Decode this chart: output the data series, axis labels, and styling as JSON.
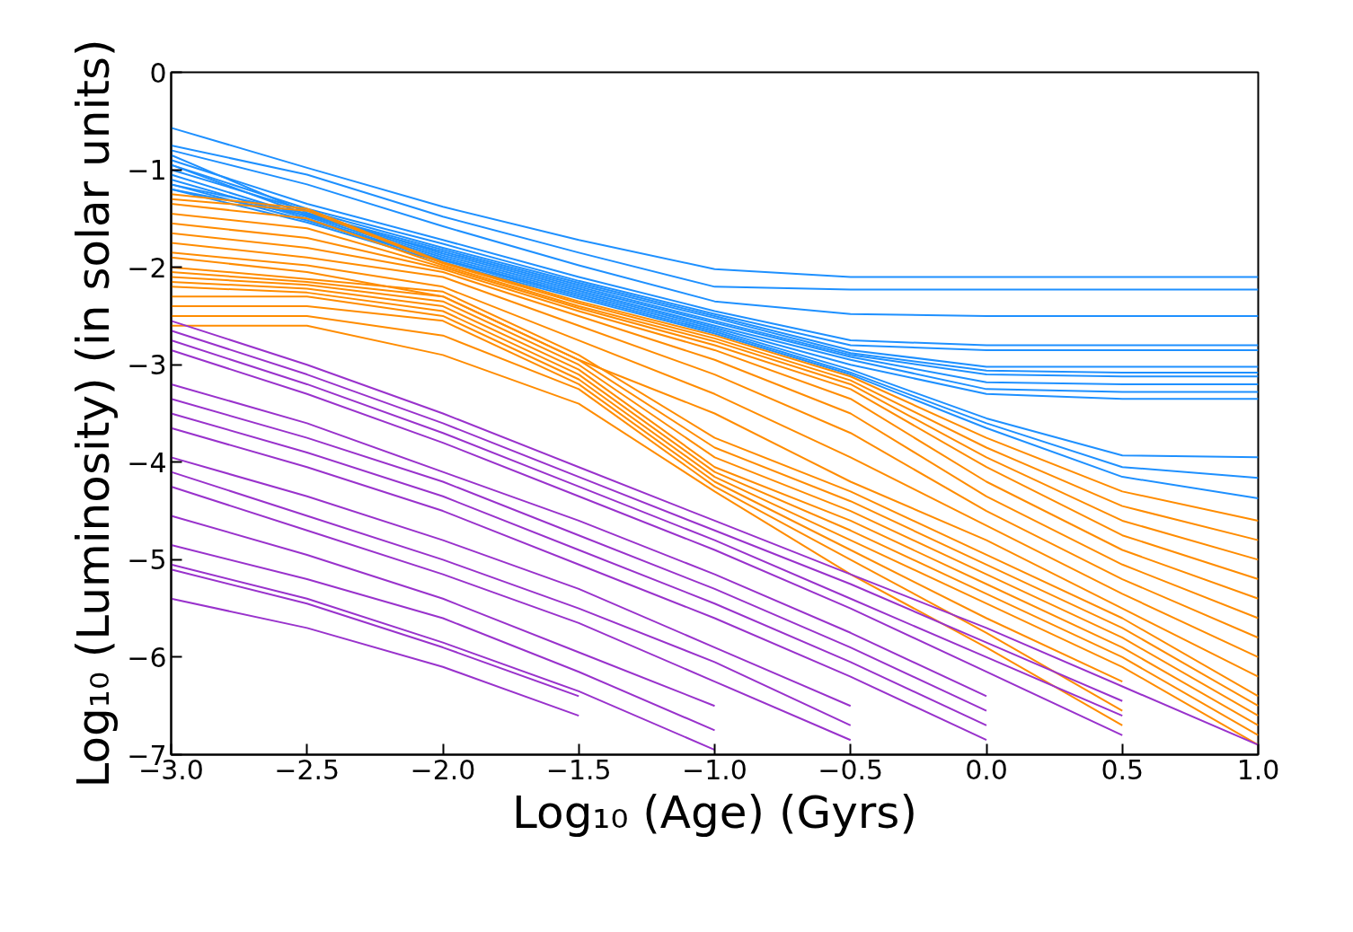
{
  "chart_data": {
    "type": "line",
    "xlabel": "Log₁₀ (Age) (Gyrs)",
    "ylabel": "Log₁₀ (Luminosity) (in solar units)",
    "x": [
      -3,
      -2.5,
      -2,
      -1.5,
      -1,
      -0.5,
      0,
      0.5,
      1
    ],
    "xlim": [
      -3,
      1
    ],
    "ylim": [
      -7,
      0
    ],
    "xticks": [
      {
        "value": -3,
        "label": "−3.0"
      },
      {
        "value": -2.5,
        "label": "−2.5"
      },
      {
        "value": -2,
        "label": "−2.0"
      },
      {
        "value": -1.5,
        "label": "−1.5"
      },
      {
        "value": -1,
        "label": "−1.0"
      },
      {
        "value": -0.5,
        "label": "−0.5"
      },
      {
        "value": 0,
        "label": "0.0"
      },
      {
        "value": 0.5,
        "label": "0.5"
      },
      {
        "value": 1,
        "label": "1.0"
      }
    ],
    "yticks": [
      {
        "value": -7,
        "label": "−7"
      },
      {
        "value": -6,
        "label": "−6"
      },
      {
        "value": -5,
        "label": "−5"
      },
      {
        "value": -4,
        "label": "−4"
      },
      {
        "value": -3,
        "label": "−3"
      },
      {
        "value": -2,
        "label": "−2"
      },
      {
        "value": -1,
        "label": "−1"
      },
      0
    ],
    "grid": false,
    "line_style": "solid",
    "marker": "none",
    "series": [
      {
        "color": "#1e90ff",
        "values": [
          -0.57,
          -0.98,
          -1.38,
          -1.72,
          -2.02,
          -2.1,
          -2.1,
          -2.1,
          -2.1
        ]
      },
      {
        "color": "#1e90ff",
        "values": [
          -0.75,
          -1.05,
          -1.48,
          -1.85,
          -2.2,
          -2.23,
          -2.23,
          -2.23,
          -2.23
        ]
      },
      {
        "color": "#1e90ff",
        "values": [
          -0.8,
          -1.15,
          -1.58,
          -1.98,
          -2.35,
          -2.48,
          -2.5,
          -2.5,
          -2.5
        ]
      },
      {
        "color": "#1e90ff",
        "values": [
          -0.9,
          -1.35,
          -1.72,
          -2.1,
          -2.45,
          -2.75,
          -2.8,
          -2.8,
          -2.8
        ]
      },
      {
        "color": "#1e90ff",
        "values": [
          -0.95,
          -1.4,
          -1.76,
          -2.14,
          -2.48,
          -2.8,
          -2.85,
          -2.85,
          -2.85
        ]
      },
      {
        "color": "#1e90ff",
        "values": [
          -1.0,
          -1.42,
          -1.8,
          -2.16,
          -2.5,
          -2.85,
          -3.02,
          -3.02,
          -3.02
        ]
      },
      {
        "color": "#1e90ff",
        "values": [
          -1.15,
          -1.45,
          -1.82,
          -2.18,
          -2.52,
          -2.88,
          -3.06,
          -3.08,
          -3.08
        ]
      },
      {
        "color": "#1e90ff",
        "values": [
          -1.2,
          -1.47,
          -1.84,
          -2.2,
          -2.55,
          -2.9,
          -3.1,
          -3.12,
          -3.12
        ]
      },
      {
        "color": "#1e90ff",
        "values": [
          -0.85,
          -1.44,
          -1.86,
          -2.22,
          -2.57,
          -2.92,
          -3.18,
          -3.2,
          -3.2
        ]
      },
      {
        "color": "#1e90ff",
        "values": [
          -0.95,
          -1.46,
          -1.88,
          -2.24,
          -2.6,
          -2.95,
          -3.25,
          -3.28,
          -3.28
        ]
      },
      {
        "color": "#1e90ff",
        "values": [
          -1.05,
          -1.48,
          -1.9,
          -2.26,
          -2.62,
          -3.0,
          -3.3,
          -3.35,
          -3.35
        ]
      },
      {
        "color": "#1e90ff",
        "values": [
          -1.1,
          -1.5,
          -1.92,
          -2.28,
          -2.64,
          -3.05,
          -3.55,
          -3.93,
          -3.95
        ]
      },
      {
        "color": "#1e90ff",
        "values": [
          -1.15,
          -1.52,
          -1.93,
          -2.3,
          -2.66,
          -3.08,
          -3.6,
          -4.05,
          -4.16
        ]
      },
      {
        "color": "#1e90ff",
        "values": [
          -1.2,
          -1.54,
          -1.95,
          -2.32,
          -2.68,
          -3.1,
          -3.65,
          -4.15,
          -4.37
        ]
      },
      {
        "color": "#ff8c00",
        "values": [
          -1.25,
          -1.4,
          -1.95,
          -2.35,
          -2.7,
          -3.12,
          -3.75,
          -4.3,
          -4.6
        ]
      },
      {
        "color": "#ff8c00",
        "values": [
          -1.3,
          -1.42,
          -1.96,
          -2.37,
          -2.73,
          -3.16,
          -3.85,
          -4.45,
          -4.8
        ]
      },
      {
        "color": "#ff8c00",
        "values": [
          -1.35,
          -1.5,
          -1.98,
          -2.4,
          -2.76,
          -3.2,
          -3.95,
          -4.6,
          -5.0
        ]
      },
      {
        "color": "#ff8c00",
        "values": [
          -1.45,
          -1.6,
          -2.0,
          -2.42,
          -2.8,
          -3.25,
          -4.05,
          -4.75,
          -5.2
        ]
      },
      {
        "color": "#ff8c00",
        "values": [
          -1.55,
          -1.7,
          -2.02,
          -2.45,
          -2.85,
          -3.35,
          -4.2,
          -4.9,
          -5.4
        ]
      },
      {
        "color": "#ff8c00",
        "values": [
          -1.65,
          -1.8,
          -2.05,
          -2.5,
          -2.95,
          -3.5,
          -4.35,
          -5.05,
          -5.6
        ]
      },
      {
        "color": "#ff8c00",
        "values": [
          -1.75,
          -1.9,
          -2.1,
          -2.6,
          -3.1,
          -3.7,
          -4.5,
          -5.2,
          -5.8
        ]
      },
      {
        "color": "#ff8c00",
        "values": [
          -1.85,
          -1.98,
          -2.2,
          -2.75,
          -3.3,
          -3.95,
          -4.65,
          -5.35,
          -6.0
        ]
      },
      {
        "color": "#ff8c00",
        "values": [
          -1.9,
          -2.05,
          -2.3,
          -2.95,
          -3.5,
          -4.2,
          -4.8,
          -5.5,
          -6.2
        ]
      },
      {
        "color": "#ff8c00",
        "values": [
          -2.0,
          -2.12,
          -2.25,
          -2.9,
          -3.75,
          -4.3,
          -4.95,
          -5.6,
          -6.4
        ]
      },
      {
        "color": "#ff8c00",
        "values": [
          -2.05,
          -2.15,
          -2.3,
          -2.95,
          -3.85,
          -4.4,
          -5.05,
          -5.7,
          -6.5
        ]
      },
      {
        "color": "#ff8c00",
        "values": [
          -2.1,
          -2.18,
          -2.35,
          -3.0,
          -3.95,
          -4.5,
          -5.15,
          -5.8,
          -6.6
        ]
      },
      {
        "color": "#ff8c00",
        "values": [
          -2.15,
          -2.22,
          -2.4,
          -3.05,
          -4.05,
          -4.6,
          -5.25,
          -5.9,
          -6.7
        ]
      },
      {
        "color": "#ff8c00",
        "values": [
          -2.2,
          -2.26,
          -2.45,
          -3.1,
          -4.1,
          -4.7,
          -5.35,
          -6.0,
          -6.8
        ]
      },
      {
        "color": "#ff8c00",
        "values": [
          -2.3,
          -2.3,
          -2.5,
          -3.15,
          -4.15,
          -4.8,
          -5.45,
          -6.1,
          -6.9
        ]
      },
      {
        "color": "#ff8c00",
        "values": [
          -2.4,
          -2.4,
          -2.55,
          -3.2,
          -4.2,
          -4.9,
          -5.6,
          -6.25,
          null
        ]
      },
      {
        "color": "#ff8c00",
        "values": [
          -2.5,
          -2.5,
          -2.7,
          -3.25,
          -4.25,
          -5.0,
          -5.75,
          -6.55,
          null
        ]
      },
      {
        "color": "#ff8c00",
        "values": [
          -2.6,
          -2.6,
          -2.9,
          -3.4,
          -4.3,
          -5.15,
          -5.9,
          -6.7,
          null
        ]
      },
      {
        "color": "#9932cc",
        "values": [
          -2.55,
          -3.0,
          -3.5,
          -4.05,
          -4.6,
          -5.15,
          -5.7,
          -6.3,
          -6.9
        ]
      },
      {
        "color": "#9932cc",
        "values": [
          -2.65,
          -3.1,
          -3.6,
          -4.15,
          -4.7,
          -5.25,
          -5.85,
          -6.45,
          null
        ]
      },
      {
        "color": "#9932cc",
        "values": [
          -2.75,
          -3.2,
          -3.7,
          -4.25,
          -4.8,
          -5.4,
          -6.0,
          -6.6,
          null
        ]
      },
      {
        "color": "#9932cc",
        "values": [
          -2.85,
          -3.3,
          -3.8,
          -4.35,
          -4.9,
          -5.5,
          -6.15,
          -6.8,
          null
        ]
      },
      {
        "color": "#9932cc",
        "values": [
          -3.2,
          -3.6,
          -4.1,
          -4.6,
          -5.15,
          -5.75,
          -6.4,
          null,
          null
        ]
      },
      {
        "color": "#9932cc",
        "values": [
          -3.35,
          -3.75,
          -4.2,
          -4.75,
          -5.3,
          -5.9,
          -6.55,
          null,
          null
        ]
      },
      {
        "color": "#9932cc",
        "values": [
          -3.5,
          -3.9,
          -4.35,
          -4.9,
          -5.45,
          -6.05,
          -6.7,
          null,
          null
        ]
      },
      {
        "color": "#9932cc",
        "values": [
          -3.65,
          -4.05,
          -4.5,
          -5.05,
          -5.6,
          -6.2,
          -6.85,
          null,
          null
        ]
      },
      {
        "color": "#9932cc",
        "values": [
          -3.95,
          -4.35,
          -4.8,
          -5.3,
          -5.9,
          -6.5,
          null,
          null,
          null
        ]
      },
      {
        "color": "#9932cc",
        "values": [
          -4.1,
          -4.55,
          -5.0,
          -5.5,
          -6.05,
          -6.7,
          null,
          null,
          null
        ]
      },
      {
        "color": "#9932cc",
        "values": [
          -4.25,
          -4.7,
          -5.15,
          -5.65,
          -6.25,
          -6.85,
          null,
          null,
          null
        ]
      },
      {
        "color": "#9932cc",
        "values": [
          -4.55,
          -4.95,
          -5.4,
          -5.95,
          -6.5,
          null,
          null,
          null,
          null
        ]
      },
      {
        "color": "#9932cc",
        "values": [
          -4.85,
          -5.2,
          -5.6,
          -6.15,
          -6.75,
          null,
          null,
          null,
          null
        ]
      },
      {
        "color": "#9932cc",
        "values": [
          -5.05,
          -5.4,
          -5.85,
          -6.35,
          -6.95,
          null,
          null,
          null,
          null
        ]
      },
      {
        "color": "#9932cc",
        "values": [
          -5.1,
          -5.45,
          -5.9,
          -6.4,
          null,
          null,
          null,
          null,
          null
        ]
      },
      {
        "color": "#9932cc",
        "values": [
          -5.4,
          -5.7,
          -6.1,
          -6.6,
          null,
          null,
          null,
          null,
          null
        ]
      }
    ]
  }
}
